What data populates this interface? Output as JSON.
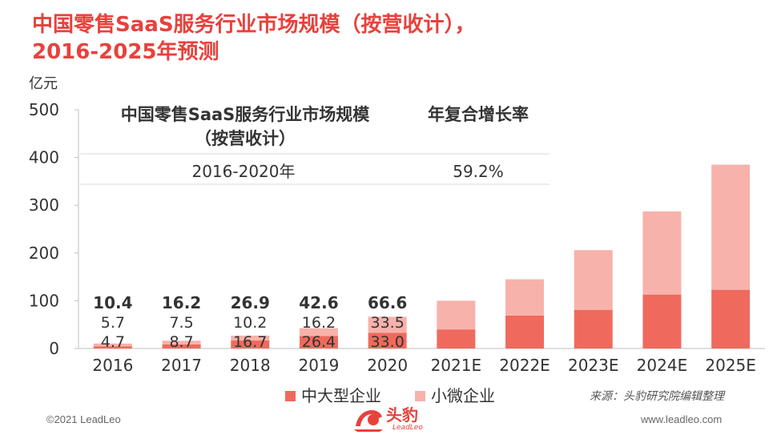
{
  "header": {
    "title_line1": "中国零售SaaS服务行业市场规模（按营收计），",
    "title_line2": "2016-2025年预测"
  },
  "chart_data": {
    "type": "bar",
    "stacked": true,
    "ylabel": "亿元",
    "ylim": [
      0,
      500
    ],
    "yticks": [
      "0",
      "100",
      "200",
      "300",
      "400",
      "500"
    ],
    "grid": false,
    "legend_position": "bottom",
    "categories": [
      "2016",
      "2017",
      "2018",
      "2019",
      "2020",
      "2021E",
      "2022E",
      "2023E",
      "2024E",
      "2025E"
    ],
    "series": [
      {
        "name": "中大型企业",
        "color": "#ef6a5c",
        "values": [
          4.7,
          8.7,
          16.7,
          26.4,
          33.0,
          40,
          69,
          81,
          113,
          123
        ],
        "labels": [
          "4.7",
          "8.7",
          "16.7",
          "26.4",
          "33.0",
          "",
          "",
          "",
          "",
          ""
        ]
      },
      {
        "name": "小微企业",
        "color": "#f7b2ab",
        "values": [
          5.7,
          7.5,
          10.2,
          16.2,
          33.5,
          60,
          76,
          125,
          174,
          262
        ],
        "labels": [
          "5.7",
          "7.5",
          "10.2",
          "16.2",
          "33.5",
          "",
          "",
          "",
          "",
          ""
        ]
      }
    ],
    "totals": [
      "10.4",
      "16.2",
      "26.9",
      "42.6",
      "66.6",
      "",
      "",
      "",
      "",
      ""
    ]
  },
  "cagr_table": {
    "col1_header": "中国零售SaaS服务行业市场规模",
    "col1_header_sub": "（按营收计）",
    "col2_header": "年复合增长率",
    "period": "2016-2020年",
    "rate": "59.2%"
  },
  "footer": {
    "source": "来源：头豹研究院编辑整理",
    "copyright": "©2021 LeadLeo",
    "website": "www.leadleo.com",
    "logo_cn": "头豹",
    "logo_en": "LeadLeo"
  },
  "colors": {
    "accent": "#e8413c"
  }
}
